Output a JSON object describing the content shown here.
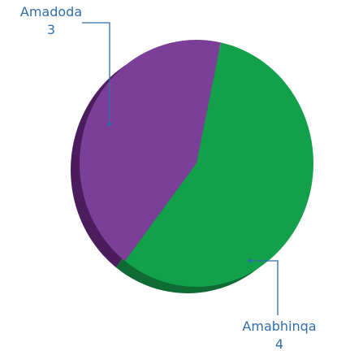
{
  "chart_data": {
    "type": "pie",
    "title": "",
    "slices": [
      {
        "label": "Amadoda",
        "value": 3,
        "color": "#7b3f98"
      },
      {
        "label": "Amabhinqa",
        "value": 4,
        "color": "#12a14a"
      }
    ],
    "label_color": "#2f6ea8",
    "shadow_colors": {
      "Amadoda": "#4c1d5e",
      "Amabhinqa": "#0e6b33"
    }
  }
}
